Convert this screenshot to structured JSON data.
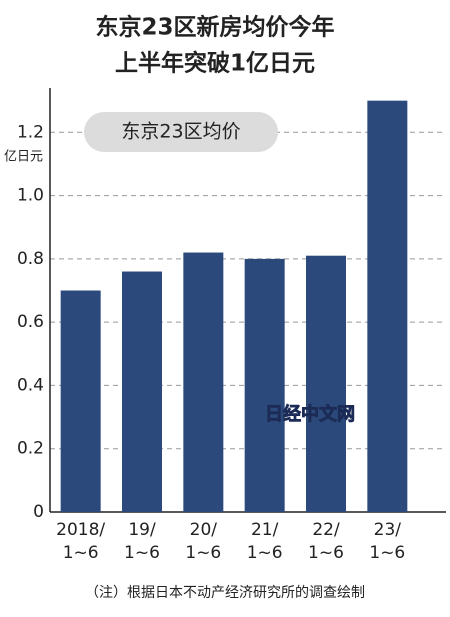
{
  "chart_data": {
    "type": "bar",
    "title": [
      "东京23区新房均价今年",
      "上半年突破1亿日元"
    ],
    "y_unit": "亿日元",
    "legend_label": "东京23区均价",
    "watermark": "日经中文网",
    "note": "（注）根据日本不动产经济研究所的调查绘制",
    "categories": [
      [
        "2018/",
        "1~6"
      ],
      [
        "19/",
        "1~6"
      ],
      [
        "20/",
        "1~6"
      ],
      [
        "21/",
        "1~6"
      ],
      [
        "22/",
        "1~6"
      ],
      [
        "23/",
        "1~6"
      ]
    ],
    "values": [
      0.7,
      0.76,
      0.82,
      0.8,
      0.81,
      1.3
    ],
    "color": "#2b4a7b",
    "ylim": [
      0,
      1.34
    ],
    "yticks": [
      0,
      0.2,
      0.4,
      0.6,
      0.8,
      {
        "value": 1,
        "label": "1.0"
      },
      1.2
    ],
    "grid": true
  }
}
